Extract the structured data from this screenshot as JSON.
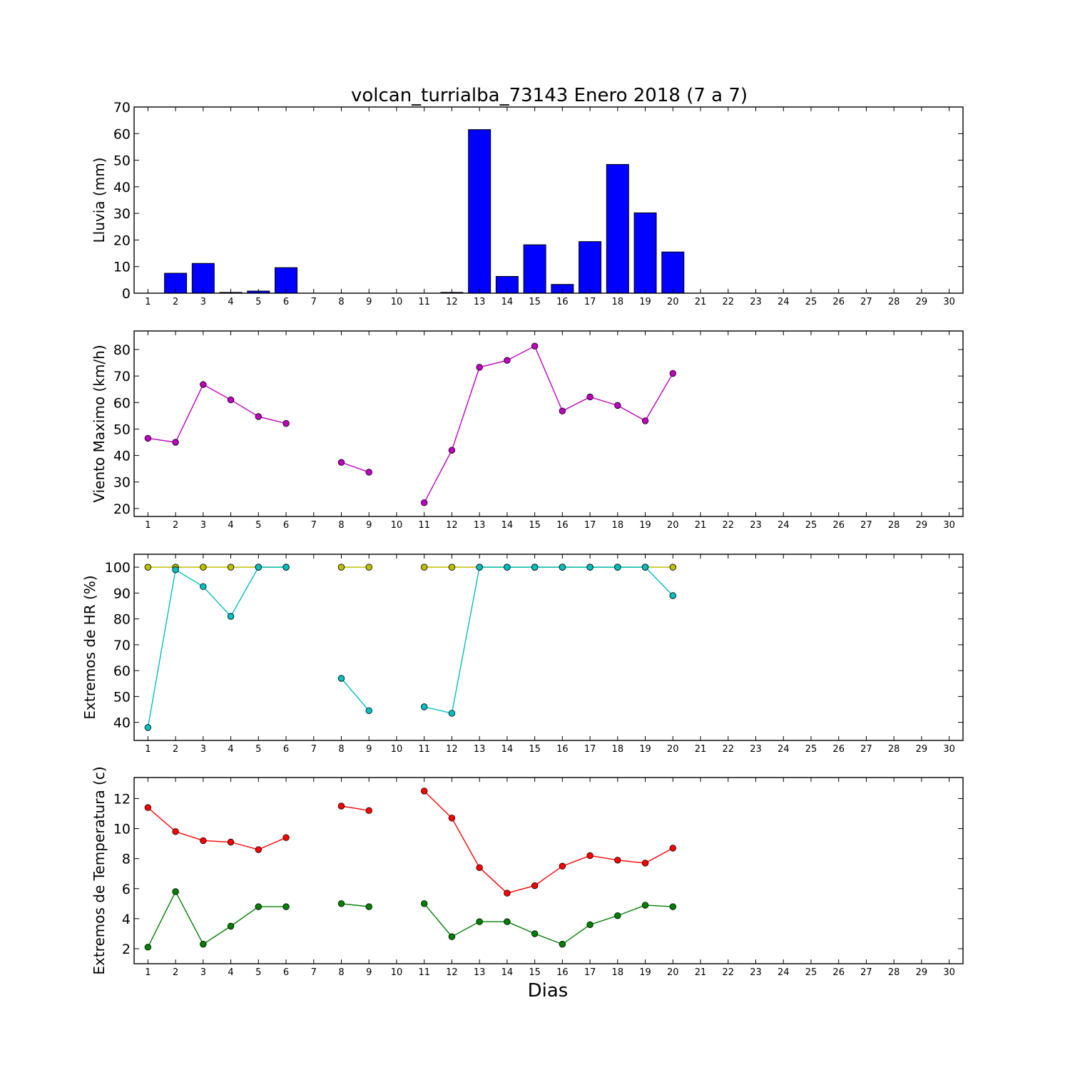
{
  "figure": {
    "title": "volcan_turrialba_73143 Enero 2018  (7 a 7)",
    "xlabel": "Dias"
  },
  "chart_data": [
    {
      "type": "bar",
      "ylabel": "Lluvia (mm)",
      "xlim": [
        0.5,
        30.5
      ],
      "ylim": [
        0,
        70
      ],
      "yticks": [
        0,
        10,
        20,
        30,
        40,
        50,
        60,
        70
      ],
      "x": [
        1,
        2,
        3,
        4,
        5,
        6,
        7,
        8,
        9,
        10,
        11,
        12,
        13,
        14,
        15,
        16,
        17,
        18,
        19,
        20,
        21,
        22,
        23,
        24,
        25,
        26,
        27,
        28,
        29,
        30
      ],
      "series": [
        {
          "color": "#0000ff",
          "values": [
            0,
            7.5,
            11.2,
            0.3,
            0.8,
            9.6,
            0,
            0,
            0,
            0,
            0,
            0.3,
            61.5,
            6.3,
            18.2,
            3.3,
            19.4,
            48.4,
            30.2,
            15.5,
            null,
            null,
            null,
            null,
            null,
            null,
            null,
            null,
            null,
            null
          ]
        }
      ]
    },
    {
      "type": "line",
      "ylabel": "Viento Maximo (km/h)",
      "xlim": [
        0.5,
        30.5
      ],
      "ylim": [
        17,
        87
      ],
      "yticks": [
        20,
        30,
        40,
        50,
        60,
        70,
        80
      ],
      "x": [
        1,
        2,
        3,
        4,
        5,
        6,
        7,
        8,
        9,
        10,
        11,
        12,
        13,
        14,
        15,
        16,
        17,
        18,
        19,
        20
      ],
      "series": [
        {
          "color": "#bf00bf",
          "values": [
            46.5,
            45.0,
            66.8,
            61.0,
            54.7,
            52.1,
            null,
            37.4,
            33.7,
            null,
            22.2,
            42.0,
            73.3,
            75.9,
            81.3,
            56.8,
            62.1,
            58.9,
            53.1,
            71.0
          ]
        }
      ]
    },
    {
      "type": "line",
      "ylabel": "Extremos de HR (%)",
      "xlim": [
        0.5,
        30.5
      ],
      "ylim": [
        33,
        105
      ],
      "yticks": [
        40,
        50,
        60,
        70,
        80,
        90,
        100
      ],
      "x": [
        1,
        2,
        3,
        4,
        5,
        6,
        7,
        8,
        9,
        10,
        11,
        12,
        13,
        14,
        15,
        16,
        17,
        18,
        19,
        20
      ],
      "series": [
        {
          "color": "#bfbf00",
          "values": [
            100,
            100,
            100,
            100,
            100,
            100,
            null,
            100,
            100,
            null,
            100,
            100,
            100,
            100,
            100,
            100,
            100,
            100,
            100,
            100
          ]
        },
        {
          "color": "#00bfbf",
          "values": [
            38.0,
            99.0,
            92.5,
            81.0,
            100,
            100,
            null,
            57.0,
            44.5,
            null,
            46.0,
            43.5,
            100,
            100,
            100,
            100,
            100,
            100,
            100,
            89.0
          ]
        }
      ]
    },
    {
      "type": "line",
      "ylabel": "Extremos de Temperatura (c)",
      "xlim": [
        0.5,
        30.5
      ],
      "ylim": [
        1.0,
        13.4
      ],
      "yticks": [
        2,
        4,
        6,
        8,
        10,
        12
      ],
      "x": [
        1,
        2,
        3,
        4,
        5,
        6,
        7,
        8,
        9,
        10,
        11,
        12,
        13,
        14,
        15,
        16,
        17,
        18,
        19,
        20
      ],
      "series": [
        {
          "color": "#ff0000",
          "values": [
            11.4,
            9.8,
            9.2,
            9.1,
            8.6,
            9.4,
            null,
            11.5,
            11.2,
            null,
            12.5,
            10.7,
            7.4,
            5.7,
            6.2,
            7.5,
            8.2,
            7.9,
            7.7,
            8.7
          ]
        },
        {
          "color": "#008000",
          "values": [
            2.1,
            5.8,
            2.3,
            3.5,
            4.8,
            4.8,
            null,
            5.0,
            4.8,
            null,
            5.0,
            2.8,
            3.8,
            3.8,
            3.0,
            2.3,
            3.6,
            4.2,
            4.9,
            4.8
          ]
        }
      ]
    }
  ]
}
